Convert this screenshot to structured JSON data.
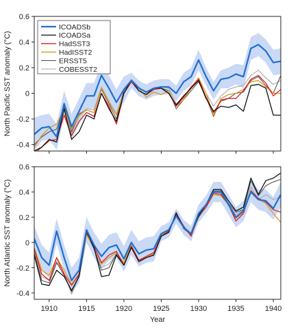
{
  "chart_data": [
    {
      "type": "line",
      "ylabel": "North Pacific SST anomaly (°C)",
      "xlabel": "",
      "xlim": [
        1908,
        1941
      ],
      "ylim": [
        -0.45,
        0.6
      ],
      "xticks": [
        1910,
        1915,
        1920,
        1925,
        1930,
        1935,
        1940
      ],
      "yticks": [
        -0.4,
        -0.2,
        0,
        0.2,
        0.4,
        0.6
      ],
      "ytick_labels": [
        "-0.4",
        "-0.2",
        "0",
        "0.2",
        "0.4",
        "0.6"
      ],
      "show_xtick_labels": false,
      "grid": false,
      "legend": {
        "position": "top-left"
      },
      "x": [
        1908,
        1909,
        1910,
        1911,
        1912,
        1913,
        1914,
        1915,
        1916,
        1917,
        1918,
        1919,
        1920,
        1921,
        1922,
        1923,
        1924,
        1925,
        1926,
        1927,
        1928,
        1929,
        1930,
        1931,
        1932,
        1933,
        1934,
        1935,
        1936,
        1937,
        1938,
        1939,
        1940,
        1941
      ],
      "band": {
        "series": "ICOADSb",
        "color": "#c9d9f6",
        "lower": [
          -0.45,
          -0.37,
          -0.36,
          -0.44,
          -0.18,
          -0.36,
          -0.24,
          -0.12,
          -0.12,
          0.04,
          -0.06,
          -0.17,
          -0.07,
          0.04,
          -0.02,
          -0.05,
          -0.02,
          -0.01,
          -0.01,
          -0.06,
          0.02,
          0.06,
          0.18,
          0.06,
          -0.05,
          0.04,
          0.04,
          0.07,
          0.04,
          0.26,
          0.29,
          0.24,
          0.14,
          0.15
        ],
        "upper": [
          -0.19,
          -0.17,
          -0.16,
          -0.24,
          0.02,
          -0.16,
          -0.04,
          0.08,
          0.08,
          0.24,
          0.14,
          0.03,
          0.13,
          0.16,
          0.1,
          0.07,
          0.1,
          0.11,
          0.11,
          0.06,
          0.16,
          0.2,
          0.34,
          0.2,
          0.09,
          0.18,
          0.2,
          0.23,
          0.22,
          0.44,
          0.47,
          0.42,
          0.34,
          0.35
        ]
      },
      "series": [
        {
          "name": "ICOADSb",
          "color": "#1e6fd0",
          "width": 2.2,
          "values": [
            -0.32,
            -0.27,
            -0.26,
            -0.34,
            -0.08,
            -0.26,
            -0.14,
            -0.02,
            -0.02,
            0.14,
            0.04,
            -0.07,
            0.03,
            0.1,
            0.04,
            0.01,
            0.04,
            0.05,
            0.05,
            0.0,
            0.09,
            0.13,
            0.26,
            0.13,
            0.02,
            0.11,
            0.12,
            0.15,
            0.13,
            0.35,
            0.38,
            0.33,
            0.24,
            0.25
          ]
        },
        {
          "name": "ICOADSa",
          "color": "#111111",
          "width": 1.3,
          "values": [
            -0.45,
            -0.42,
            -0.36,
            -0.38,
            -0.12,
            -0.36,
            -0.3,
            -0.17,
            -0.2,
            0.0,
            -0.12,
            -0.22,
            0.0,
            0.1,
            0.02,
            -0.01,
            0.04,
            0.04,
            0.0,
            -0.09,
            -0.02,
            0.04,
            0.1,
            -0.04,
            -0.14,
            -0.1,
            -0.11,
            -0.09,
            -0.14,
            0.06,
            0.07,
            0.04,
            -0.17,
            -0.17
          ]
        },
        {
          "name": "HadSST3",
          "color": "#e41a1c",
          "width": 1.3,
          "values": [
            -0.47,
            -0.42,
            -0.37,
            -0.36,
            -0.17,
            -0.33,
            -0.22,
            -0.15,
            -0.18,
            0.0,
            -0.1,
            -0.24,
            0.0,
            0.09,
            0.02,
            -0.01,
            0.03,
            0.04,
            0.0,
            -0.1,
            -0.03,
            0.05,
            0.11,
            -0.03,
            -0.15,
            -0.06,
            -0.04,
            -0.04,
            0.02,
            0.11,
            0.14,
            0.08,
            -0.02,
            0.03
          ]
        },
        {
          "name": "HadISST2",
          "color": "#d99a1e",
          "width": 1.3,
          "values": [
            -0.42,
            -0.33,
            -0.27,
            -0.24,
            -0.12,
            -0.28,
            -0.17,
            -0.13,
            -0.15,
            0.04,
            -0.07,
            -0.17,
            0.0,
            0.09,
            0.04,
            -0.03,
            0.01,
            -0.01,
            0.02,
            -0.1,
            -0.05,
            0.04,
            0.12,
            0.0,
            -0.17,
            -0.04,
            -0.01,
            0.0,
            0.03,
            0.09,
            0.1,
            0.05,
            0.0,
            0.0
          ]
        },
        {
          "name": "ERSST5",
          "color": "#555555",
          "width": 1.1,
          "values": [
            -0.4,
            -0.34,
            -0.3,
            -0.28,
            -0.1,
            -0.3,
            -0.16,
            -0.13,
            -0.15,
            0.03,
            -0.08,
            -0.2,
            0.02,
            0.1,
            0.04,
            0.01,
            0.04,
            0.04,
            0.02,
            -0.12,
            -0.05,
            0.02,
            0.09,
            -0.03,
            -0.18,
            -0.05,
            -0.04,
            0.0,
            0.01,
            0.1,
            0.13,
            0.06,
            0.0,
            0.14
          ]
        },
        {
          "name": "COBESST2",
          "color": "#a8a8a8",
          "width": 1.1,
          "values": [
            -0.41,
            -0.34,
            -0.3,
            -0.28,
            -0.12,
            -0.31,
            -0.18,
            -0.12,
            -0.13,
            0.05,
            -0.06,
            -0.16,
            0.02,
            0.11,
            0.05,
            0.0,
            0.03,
            0.05,
            0.04,
            -0.08,
            -0.04,
            0.05,
            0.12,
            0.0,
            -0.1,
            -0.02,
            0.03,
            0.05,
            0.06,
            0.14,
            0.18,
            0.12,
            0.07,
            0.1
          ]
        }
      ]
    },
    {
      "type": "line",
      "ylabel": "North Atlantic SST anomaly (°C)",
      "xlabel": "Year",
      "xlim": [
        1908,
        1941
      ],
      "ylim": [
        -0.45,
        0.6
      ],
      "xticks": [
        1910,
        1915,
        1920,
        1925,
        1930,
        1935,
        1940
      ],
      "xtick_labels": [
        "1910",
        "1915",
        "1920",
        "1925",
        "1930",
        "1935",
        "1940"
      ],
      "yticks": [
        -0.4,
        -0.2,
        0,
        0.2,
        0.4,
        0.6
      ],
      "ytick_labels": [
        "-0.4",
        "-0.2",
        "0",
        "0.2",
        "0.4",
        "0.6"
      ],
      "show_xtick_labels": true,
      "grid": false,
      "x": [
        1908,
        1909,
        1910,
        1911,
        1912,
        1913,
        1914,
        1915,
        1916,
        1917,
        1918,
        1919,
        1920,
        1921,
        1922,
        1923,
        1924,
        1925,
        1926,
        1927,
        1928,
        1929,
        1930,
        1931,
        1932,
        1933,
        1934,
        1935,
        1936,
        1937,
        1938,
        1939,
        1940,
        1941
      ],
      "band": {
        "series": "ICOADSb",
        "color": "#c9d9f6",
        "lower": [
          -0.07,
          -0.22,
          -0.28,
          -0.01,
          -0.22,
          -0.4,
          -0.32,
          0.0,
          -0.12,
          -0.21,
          -0.14,
          -0.12,
          -0.23,
          -0.1,
          -0.19,
          -0.16,
          -0.15,
          0.01,
          0.04,
          0.15,
          0.06,
          0.01,
          0.16,
          0.23,
          0.32,
          0.32,
          0.22,
          0.12,
          0.17,
          0.32,
          0.26,
          0.24,
          0.18,
          0.28
        ],
        "upper": [
          0.13,
          -0.02,
          -0.08,
          0.19,
          -0.02,
          -0.2,
          -0.12,
          0.2,
          0.08,
          -0.01,
          0.06,
          0.08,
          -0.03,
          0.1,
          0.01,
          0.04,
          0.05,
          0.13,
          0.16,
          0.27,
          0.18,
          0.13,
          0.3,
          0.37,
          0.48,
          0.48,
          0.38,
          0.28,
          0.33,
          0.48,
          0.42,
          0.42,
          0.36,
          0.48
        ]
      },
      "series": [
        {
          "name": "ICOADSb",
          "color": "#1e6fd0",
          "width": 2.2,
          "values": [
            0.03,
            -0.12,
            -0.18,
            0.09,
            -0.12,
            -0.3,
            -0.22,
            0.1,
            -0.02,
            -0.11,
            -0.04,
            -0.02,
            -0.13,
            0.0,
            -0.09,
            -0.06,
            -0.05,
            0.07,
            0.1,
            0.21,
            0.12,
            0.07,
            0.23,
            0.3,
            0.4,
            0.4,
            0.3,
            0.2,
            0.25,
            0.4,
            0.34,
            0.33,
            0.27,
            0.38
          ]
        },
        {
          "name": "ICOADSa",
          "color": "#111111",
          "width": 1.3,
          "values": [
            -0.1,
            -0.33,
            -0.34,
            -0.22,
            -0.27,
            -0.38,
            -0.27,
            0.09,
            -0.04,
            -0.27,
            -0.26,
            -0.1,
            -0.18,
            -0.04,
            -0.15,
            -0.12,
            -0.1,
            0.05,
            0.08,
            0.23,
            0.12,
            0.07,
            0.21,
            0.3,
            0.42,
            0.42,
            0.33,
            0.25,
            0.28,
            0.51,
            0.38,
            0.49,
            0.51,
            0.55
          ]
        },
        {
          "name": "HadSST3",
          "color": "#e41a1c",
          "width": 1.3,
          "values": [
            -0.05,
            -0.25,
            -0.3,
            -0.12,
            -0.25,
            -0.34,
            -0.25,
            0.08,
            -0.03,
            -0.16,
            -0.1,
            -0.07,
            -0.18,
            -0.03,
            -0.14,
            -0.11,
            -0.08,
            0.05,
            0.09,
            0.23,
            0.13,
            0.05,
            0.22,
            0.28,
            0.39,
            0.38,
            0.3,
            0.17,
            0.23,
            0.41,
            0.35,
            0.32,
            0.26,
            0.24
          ]
        },
        {
          "name": "HadISST2",
          "color": "#d99a1e",
          "width": 1.3,
          "values": [
            -0.04,
            -0.22,
            -0.26,
            -0.12,
            -0.22,
            -0.33,
            -0.25,
            0.06,
            -0.03,
            -0.17,
            -0.12,
            -0.08,
            -0.16,
            -0.02,
            -0.14,
            -0.12,
            -0.09,
            0.06,
            0.09,
            0.22,
            0.13,
            0.05,
            0.21,
            0.28,
            0.38,
            0.37,
            0.3,
            0.19,
            0.24,
            0.41,
            0.34,
            0.31,
            0.23,
            0.16
          ]
        },
        {
          "name": "ERSST5",
          "color": "#555555",
          "width": 1.1,
          "values": [
            -0.08,
            -0.3,
            -0.32,
            -0.16,
            -0.26,
            -0.39,
            -0.26,
            0.07,
            -0.05,
            -0.22,
            -0.2,
            -0.09,
            -0.18,
            -0.04,
            -0.15,
            -0.12,
            -0.1,
            0.05,
            0.08,
            0.24,
            0.11,
            0.06,
            0.2,
            0.28,
            0.41,
            0.41,
            0.31,
            0.24,
            0.26,
            0.49,
            0.37,
            0.45,
            0.48,
            0.5
          ]
        },
        {
          "name": "COBESST2",
          "color": "#a8a8a8",
          "width": 1.1,
          "values": [
            -0.06,
            -0.27,
            -0.3,
            -0.15,
            -0.24,
            -0.41,
            -0.27,
            0.06,
            -0.04,
            -0.2,
            -0.17,
            -0.1,
            -0.17,
            -0.03,
            -0.16,
            -0.12,
            -0.09,
            0.06,
            0.09,
            0.22,
            0.12,
            0.06,
            0.21,
            0.29,
            0.4,
            0.39,
            0.3,
            0.22,
            0.26,
            0.44,
            0.34,
            0.38,
            0.34,
            0.36
          ]
        }
      ]
    }
  ]
}
